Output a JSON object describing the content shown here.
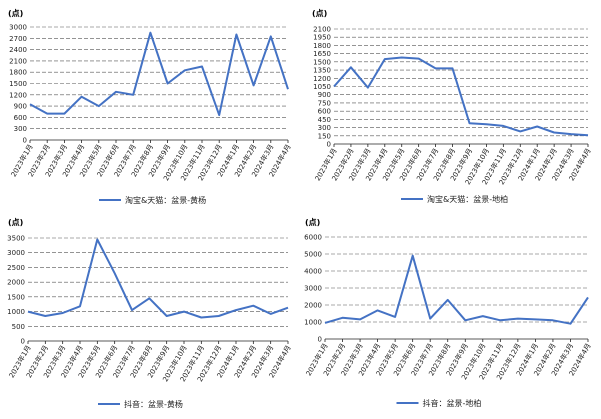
{
  "chart_data": [
    {
      "type": "line",
      "unit_label": "(点)",
      "legend": "淘宝&天猫：盆景-黄杨",
      "x": [
        "2023年1月",
        "2023年2月",
        "2023年3月",
        "2023年4月",
        "2023年5月",
        "2023年6月",
        "2023年7月",
        "2023年8月",
        "2023年9月",
        "2023年10月",
        "2023年11月",
        "2023年12月",
        "2024年1月",
        "2024年2月",
        "2024年3月",
        "2024年4月"
      ],
      "values": [
        950,
        700,
        700,
        1150,
        900,
        1280,
        1200,
        2850,
        1500,
        1850,
        1950,
        660,
        2800,
        1450,
        2750,
        1350
      ],
      "ylim": [
        0,
        3000
      ],
      "yticks": [
        0,
        300,
        600,
        900,
        1200,
        1500,
        1800,
        2100,
        2400,
        2700,
        3000
      ]
    },
    {
      "type": "line",
      "unit_label": "(点)",
      "legend": "淘宝&天猫：盆景-地柏",
      "x": [
        "2023年1月",
        "2023年2月",
        "2023年3月",
        "2023年4月",
        "2023年5月",
        "2023年6月",
        "2023年7月",
        "2023年8月",
        "2023年9月",
        "2023年10月",
        "2023年11月",
        "2023年12月",
        "2024年1月",
        "2024年2月",
        "2024年3月",
        "2024年4月"
      ],
      "values": [
        1050,
        1400,
        1030,
        1550,
        1580,
        1560,
        1380,
        1380,
        380,
        360,
        330,
        230,
        320,
        210,
        180,
        160
      ],
      "ylim": [
        0,
        2100
      ],
      "yticks": [
        0,
        150,
        300,
        450,
        600,
        750,
        900,
        1050,
        1200,
        1350,
        1500,
        1650,
        1800,
        1950,
        2100
      ]
    },
    {
      "type": "line",
      "unit_label": "(点)",
      "legend": "抖音：盆景-黄杨",
      "x": [
        "2023年1月",
        "2023年2月",
        "2023年3月",
        "2023年4月",
        "2023年5月",
        "2023年6月",
        "2023年7月",
        "2023年8月",
        "2023年9月",
        "2023年10月",
        "2023年11月",
        "2023年12月",
        "2024年1月",
        "2024年2月",
        "2024年3月",
        "2024年4月"
      ],
      "values": [
        1000,
        850,
        950,
        1180,
        3450,
        2300,
        1050,
        1450,
        850,
        1000,
        800,
        850,
        1050,
        1200,
        920,
        1130
      ],
      "ylim": [
        0,
        3500
      ],
      "yticks": [
        0,
        500,
        1000,
        1500,
        2000,
        2500,
        3000,
        3500
      ]
    },
    {
      "type": "line",
      "unit_label": "(点)",
      "legend": "抖音：盆景-地柏",
      "x": [
        "2023年1月",
        "2023年2月",
        "2023年3月",
        "2023年4月",
        "2023年5月",
        "2023年6月",
        "2023年7月",
        "2023年8月",
        "2023年9月",
        "2023年10月",
        "2023年11月",
        "2023年12月",
        "2024年1月",
        "2024年2月",
        "2024年3月",
        "2024年4月"
      ],
      "values": [
        950,
        1250,
        1150,
        1680,
        1300,
        4900,
        1200,
        2300,
        1100,
        1350,
        1100,
        1200,
        1150,
        1100,
        900,
        2450
      ],
      "ylim": [
        0,
        6000
      ],
      "yticks": [
        0,
        1000,
        2000,
        3000,
        4000,
        5000,
        6000
      ]
    }
  ]
}
